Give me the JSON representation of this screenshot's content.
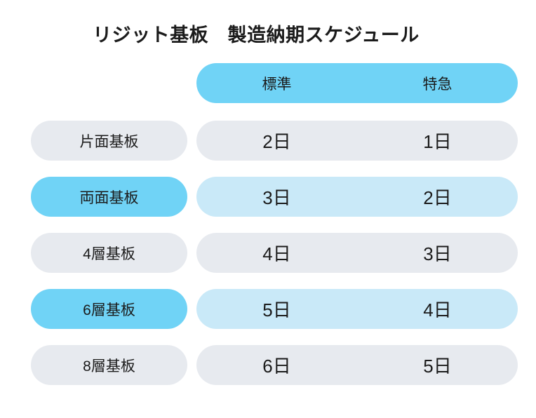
{
  "title": "リジット基板　製造納期スケジュール",
  "colors": {
    "header_blue": "#70D3F6",
    "highlight_label_blue": "#70D3F6",
    "highlight_value_blue": "#C9E9F8",
    "neutral_gray": "#E7EAEF",
    "text": "#1b1b1b",
    "background": "#FFFFFF"
  },
  "table": {
    "columns": {
      "standard": "標準",
      "express": "特急"
    },
    "rows": [
      {
        "label": "片面基板",
        "standard": "2日",
        "express": "1日",
        "highlight": false
      },
      {
        "label": "両面基板",
        "standard": "3日",
        "express": "2日",
        "highlight": true
      },
      {
        "label": "4層基板",
        "standard": "4日",
        "express": "3日",
        "highlight": false
      },
      {
        "label": "6層基板",
        "standard": "5日",
        "express": "4日",
        "highlight": true
      },
      {
        "label": "8層基板",
        "standard": "6日",
        "express": "5日",
        "highlight": false
      }
    ]
  },
  "chart_data": {
    "type": "table",
    "title": "リジット基板　製造納期スケジュール",
    "columns": [
      "",
      "標準",
      "特急"
    ],
    "rows": [
      [
        "片面基板",
        "2日",
        "1日"
      ],
      [
        "両面基板",
        "3日",
        "2日"
      ],
      [
        "4層基板",
        "4日",
        "3日"
      ],
      [
        "6層基板",
        "5日",
        "4日"
      ],
      [
        "8層基板",
        "6日",
        "5日"
      ]
    ],
    "standard_days": [
      2,
      3,
      4,
      5,
      6
    ],
    "express_days": [
      1,
      2,
      3,
      4,
      5
    ],
    "highlighted_rows": [
      "両面基板",
      "6層基板"
    ]
  }
}
